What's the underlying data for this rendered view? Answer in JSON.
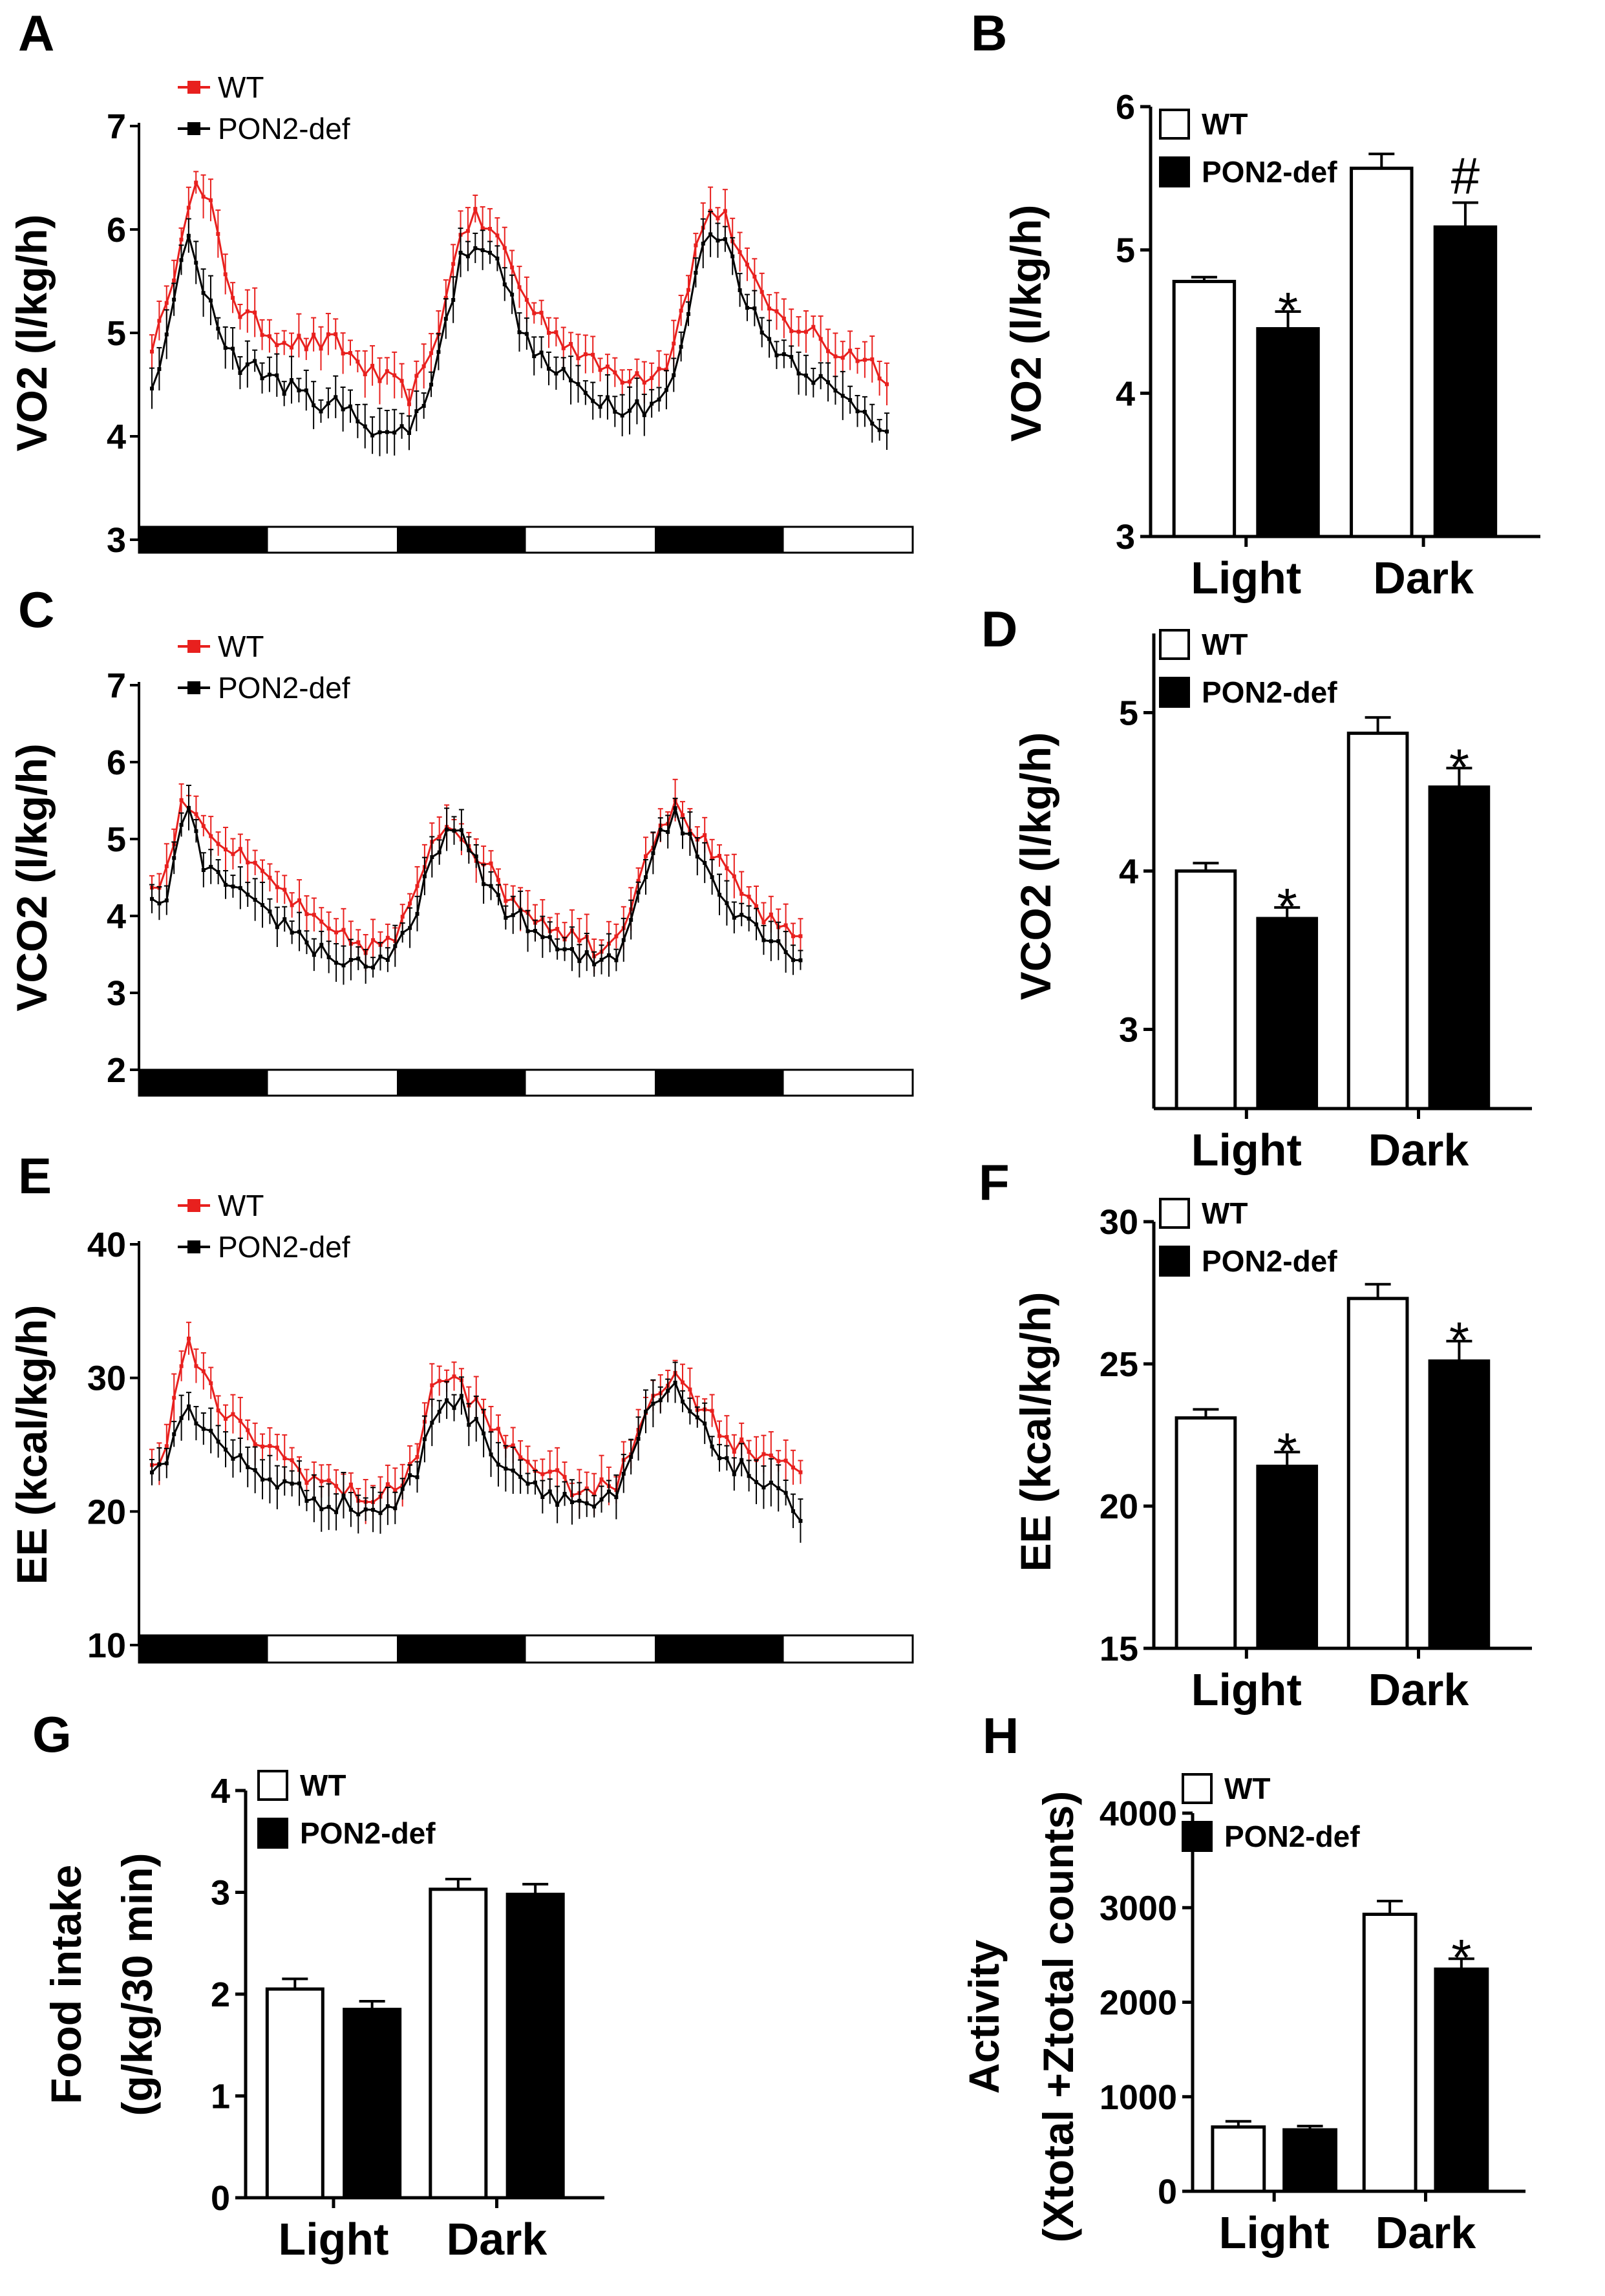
{
  "colors": {
    "wt_series": "#e8201e",
    "pon2_series": "#000000",
    "axis": "#000000",
    "bar_wt_fill": "#ffffff",
    "bar_pon2_fill": "#000000"
  },
  "chart_data": [
    {
      "panel": "A",
      "type": "line",
      "ylabel": "VO2 (l/kg/h)",
      "ylim": [
        3,
        7
      ],
      "yticks": [
        "3",
        "4",
        "5",
        "6",
        "7"
      ],
      "legend": [
        "WT",
        "PON2-def"
      ],
      "x_range": [
        0,
        100
      ],
      "npoints": 100,
      "light_dark_bar": [
        "dark",
        "light",
        "dark",
        "light",
        "dark",
        "light"
      ],
      "series": [
        {
          "name": "WT",
          "color": "#e8201e",
          "envelope": [
            [
              0,
              4.9
            ],
            [
              2,
              5.2
            ],
            [
              4,
              6.0
            ],
            [
              5,
              6.3
            ],
            [
              6,
              6.4
            ],
            [
              8,
              6.2
            ],
            [
              10,
              5.6
            ],
            [
              12,
              5.2
            ],
            [
              16,
              5.0
            ],
            [
              20,
              4.9
            ],
            [
              25,
              4.9
            ],
            [
              30,
              4.6
            ],
            [
              33,
              4.5
            ],
            [
              35,
              4.4
            ],
            [
              37,
              4.6
            ],
            [
              40,
              5.3
            ],
            [
              42,
              6.0
            ],
            [
              44,
              6.1
            ],
            [
              46,
              6.0
            ],
            [
              48,
              5.8
            ],
            [
              51,
              5.3
            ],
            [
              55,
              5.0
            ],
            [
              60,
              4.7
            ],
            [
              64,
              4.6
            ],
            [
              67,
              4.6
            ],
            [
              70,
              4.7
            ],
            [
              72,
              5.2
            ],
            [
              74,
              5.8
            ],
            [
              76,
              6.2
            ],
            [
              78,
              6.1
            ],
            [
              80,
              5.8
            ],
            [
              83,
              5.3
            ],
            [
              86,
              5.1
            ],
            [
              90,
              5.0
            ],
            [
              93,
              4.8
            ],
            [
              96,
              4.8
            ],
            [
              100,
              4.6
            ]
          ]
        },
        {
          "name": "PON2-def",
          "color": "#000000",
          "envelope": [
            [
              0,
              4.5
            ],
            [
              2,
              4.9
            ],
            [
              4,
              5.7
            ],
            [
              5,
              5.9
            ],
            [
              6,
              5.6
            ],
            [
              8,
              5.3
            ],
            [
              10,
              4.9
            ],
            [
              12,
              4.7
            ],
            [
              16,
              4.6
            ],
            [
              20,
              4.4
            ],
            [
              25,
              4.3
            ],
            [
              30,
              4.1
            ],
            [
              33,
              4.0
            ],
            [
              35,
              4.1
            ],
            [
              37,
              4.3
            ],
            [
              40,
              5.1
            ],
            [
              42,
              5.7
            ],
            [
              44,
              5.9
            ],
            [
              46,
              5.8
            ],
            [
              48,
              5.5
            ],
            [
              51,
              4.9
            ],
            [
              55,
              4.6
            ],
            [
              60,
              4.4
            ],
            [
              64,
              4.3
            ],
            [
              67,
              4.3
            ],
            [
              70,
              4.4
            ],
            [
              72,
              4.8
            ],
            [
              74,
              5.6
            ],
            [
              76,
              6.0
            ],
            [
              78,
              5.9
            ],
            [
              80,
              5.5
            ],
            [
              83,
              5.0
            ],
            [
              86,
              4.8
            ],
            [
              90,
              4.6
            ],
            [
              93,
              4.4
            ],
            [
              96,
              4.3
            ],
            [
              100,
              4.1
            ]
          ]
        }
      ]
    },
    {
      "panel": "B",
      "type": "bar",
      "ylabel": "VO2 (l/kg/h)",
      "ylim": [
        3,
        6
      ],
      "yticks": [
        "3",
        "4",
        "5",
        "6"
      ],
      "categories": [
        "Light",
        "Dark"
      ],
      "legend": [
        "WT",
        "PON2-def"
      ],
      "series": [
        {
          "name": "WT",
          "values": [
            4.78,
            5.57
          ],
          "errors": [
            0.03,
            0.1
          ]
        },
        {
          "name": "PON2-def",
          "values": [
            4.45,
            5.16
          ],
          "errors": [
            0.12,
            0.17
          ]
        }
      ],
      "annotations": [
        "*",
        "#"
      ]
    },
    {
      "panel": "C",
      "type": "line",
      "ylabel": "VCO2 (l/kg/h)",
      "ylim": [
        2,
        7
      ],
      "yticks": [
        "2",
        "3",
        "4",
        "5",
        "6",
        "7"
      ],
      "legend": [
        "WT",
        "PON2-def"
      ],
      "x_range": [
        0,
        100
      ],
      "npoints": 88,
      "light_dark_bar": [
        "dark",
        "light",
        "dark",
        "light",
        "dark",
        "light"
      ],
      "series": [
        {
          "name": "WT",
          "color": "#e8201e",
          "envelope": [
            [
              0,
              4.3
            ],
            [
              2,
              4.6
            ],
            [
              4,
              5.4
            ],
            [
              5,
              5.5
            ],
            [
              7,
              5.2
            ],
            [
              10,
              4.9
            ],
            [
              14,
              4.6
            ],
            [
              18,
              4.3
            ],
            [
              22,
              3.9
            ],
            [
              26,
              3.7
            ],
            [
              30,
              3.6
            ],
            [
              33,
              3.7
            ],
            [
              36,
              4.3
            ],
            [
              38,
              5.0
            ],
            [
              40,
              5.2
            ],
            [
              42,
              5.1
            ],
            [
              45,
              4.7
            ],
            [
              48,
              4.3
            ],
            [
              52,
              4.0
            ],
            [
              56,
              3.8
            ],
            [
              60,
              3.6
            ],
            [
              63,
              3.7
            ],
            [
              65,
              4.2
            ],
            [
              67,
              4.8
            ],
            [
              69,
              5.2
            ],
            [
              71,
              5.4
            ],
            [
              73,
              5.2
            ],
            [
              76,
              4.8
            ],
            [
              79,
              4.4
            ],
            [
              82,
              4.1
            ],
            [
              85,
              3.8
            ],
            [
              88,
              3.7
            ]
          ]
        },
        {
          "name": "PON2-def",
          "color": "#000000",
          "envelope": [
            [
              0,
              4.1
            ],
            [
              2,
              4.3
            ],
            [
              4,
              5.1
            ],
            [
              5,
              5.3
            ],
            [
              7,
              4.7
            ],
            [
              10,
              4.4
            ],
            [
              14,
              4.1
            ],
            [
              18,
              3.9
            ],
            [
              22,
              3.6
            ],
            [
              26,
              3.4
            ],
            [
              30,
              3.4
            ],
            [
              33,
              3.5
            ],
            [
              36,
              4.0
            ],
            [
              38,
              4.8
            ],
            [
              40,
              5.1
            ],
            [
              42,
              5.0
            ],
            [
              45,
              4.5
            ],
            [
              48,
              4.1
            ],
            [
              52,
              3.8
            ],
            [
              56,
              3.5
            ],
            [
              60,
              3.4
            ],
            [
              63,
              3.5
            ],
            [
              65,
              4.0
            ],
            [
              67,
              4.6
            ],
            [
              69,
              5.1
            ],
            [
              71,
              5.3
            ],
            [
              73,
              5.0
            ],
            [
              76,
              4.5
            ],
            [
              79,
              4.1
            ],
            [
              82,
              3.9
            ],
            [
              85,
              3.6
            ],
            [
              88,
              3.5
            ]
          ]
        }
      ]
    },
    {
      "panel": "D",
      "type": "bar",
      "ylabel": "VCO2 (l/kg/h)",
      "ylim": [
        2.5,
        5.5
      ],
      "yticks": [
        "3",
        "4",
        "5"
      ],
      "categories": [
        "Light",
        "Dark"
      ],
      "legend": [
        "WT",
        "PON2-def"
      ],
      "series": [
        {
          "name": "WT",
          "values": [
            4.0,
            4.87
          ],
          "errors": [
            0.05,
            0.1
          ]
        },
        {
          "name": "PON2-def",
          "values": [
            3.7,
            4.53
          ],
          "errors": [
            0.07,
            0.12
          ]
        }
      ],
      "annotations": [
        "*",
        "*"
      ]
    },
    {
      "panel": "E",
      "type": "line",
      "ylabel": "EE (kcal/kg/h)",
      "ylim": [
        10,
        40
      ],
      "yticks": [
        "10",
        "20",
        "30",
        "40"
      ],
      "legend": [
        "WT",
        "PON2-def"
      ],
      "x_range": [
        0,
        100
      ],
      "npoints": 88,
      "light_dark_bar": [
        "dark",
        "light",
        "dark",
        "light",
        "dark",
        "light"
      ],
      "series": [
        {
          "name": "WT",
          "color": "#e8201e",
          "envelope": [
            [
              0,
              23.5
            ],
            [
              2,
              25
            ],
            [
              4,
              31
            ],
            [
              5,
              32.5
            ],
            [
              7,
              30
            ],
            [
              10,
              27
            ],
            [
              14,
              25.5
            ],
            [
              18,
              24
            ],
            [
              22,
              22.5
            ],
            [
              26,
              21.5
            ],
            [
              30,
              21
            ],
            [
              33,
              21.5
            ],
            [
              36,
              24.5
            ],
            [
              38,
              29
            ],
            [
              40,
              30
            ],
            [
              42,
              29.5
            ],
            [
              45,
              27
            ],
            [
              48,
              25
            ],
            [
              52,
              23.5
            ],
            [
              56,
              22
            ],
            [
              60,
              21.5
            ],
            [
              63,
              22
            ],
            [
              65,
              24.5
            ],
            [
              67,
              28
            ],
            [
              69,
              29.5
            ],
            [
              71,
              30
            ],
            [
              73,
              29
            ],
            [
              76,
              27
            ],
            [
              79,
              25
            ],
            [
              82,
              24.5
            ],
            [
              85,
              24
            ],
            [
              88,
              23.5
            ]
          ]
        },
        {
          "name": "PON2-def",
          "color": "#000000",
          "envelope": [
            [
              0,
              22.5
            ],
            [
              2,
              24
            ],
            [
              4,
              27.5
            ],
            [
              5,
              28
            ],
            [
              7,
              26
            ],
            [
              10,
              24.5
            ],
            [
              14,
              23
            ],
            [
              18,
              22
            ],
            [
              22,
              21
            ],
            [
              26,
              20.5
            ],
            [
              30,
              20
            ],
            [
              33,
              20.5
            ],
            [
              36,
              23
            ],
            [
              38,
              27
            ],
            [
              40,
              28.5
            ],
            [
              42,
              28
            ],
            [
              45,
              25.5
            ],
            [
              48,
              23.5
            ],
            [
              52,
              22
            ],
            [
              56,
              21
            ],
            [
              60,
              20.5
            ],
            [
              63,
              21
            ],
            [
              65,
              23.5
            ],
            [
              67,
              27
            ],
            [
              69,
              28.5
            ],
            [
              71,
              29
            ],
            [
              73,
              27.5
            ],
            [
              76,
              25
            ],
            [
              79,
              23.5
            ],
            [
              82,
              22.5
            ],
            [
              85,
              21
            ],
            [
              88,
              20
            ]
          ]
        }
      ]
    },
    {
      "panel": "F",
      "type": "bar",
      "ylabel": "EE (kcal/kg/h)",
      "ylim": [
        15,
        30
      ],
      "yticks": [
        "15",
        "20",
        "25",
        "30"
      ],
      "categories": [
        "Light",
        "Dark"
      ],
      "legend": [
        "WT",
        "PON2-def"
      ],
      "series": [
        {
          "name": "WT",
          "values": [
            23.1,
            27.3
          ],
          "errors": [
            0.3,
            0.5
          ]
        },
        {
          "name": "PON2-def",
          "values": [
            21.4,
            25.1
          ],
          "errors": [
            0.5,
            0.7
          ]
        }
      ],
      "annotations": [
        "*",
        "*"
      ]
    },
    {
      "panel": "G",
      "type": "bar",
      "ylabel": [
        "Food intake",
        "(g/kg/30 min)"
      ],
      "ylim": [
        0,
        4
      ],
      "yticks": [
        "0",
        "1",
        "2",
        "3",
        "4"
      ],
      "categories": [
        "Light",
        "Dark"
      ],
      "legend": [
        "WT",
        "PON2-def"
      ],
      "series": [
        {
          "name": "WT",
          "values": [
            2.05,
            3.03
          ],
          "errors": [
            0.1,
            0.1
          ]
        },
        {
          "name": "PON2-def",
          "values": [
            1.85,
            2.98
          ],
          "errors": [
            0.08,
            0.1
          ]
        }
      ],
      "annotations": []
    },
    {
      "panel": "H",
      "type": "bar",
      "ylabel": [
        "Activity",
        "(Xtotal +Ztotal counts)"
      ],
      "ylim": [
        0,
        4000
      ],
      "yticks": [
        "0",
        "1000",
        "2000",
        "3000",
        "4000"
      ],
      "categories": [
        "Light",
        "Dark"
      ],
      "legend": [
        "WT",
        "PON2-def"
      ],
      "series": [
        {
          "name": "WT",
          "values": [
            680,
            2930
          ],
          "errors": [
            60,
            140
          ]
        },
        {
          "name": "PON2-def",
          "values": [
            650,
            2350
          ],
          "errors": [
            40,
            110
          ]
        }
      ],
      "annotations": [
        "*"
      ]
    }
  ]
}
